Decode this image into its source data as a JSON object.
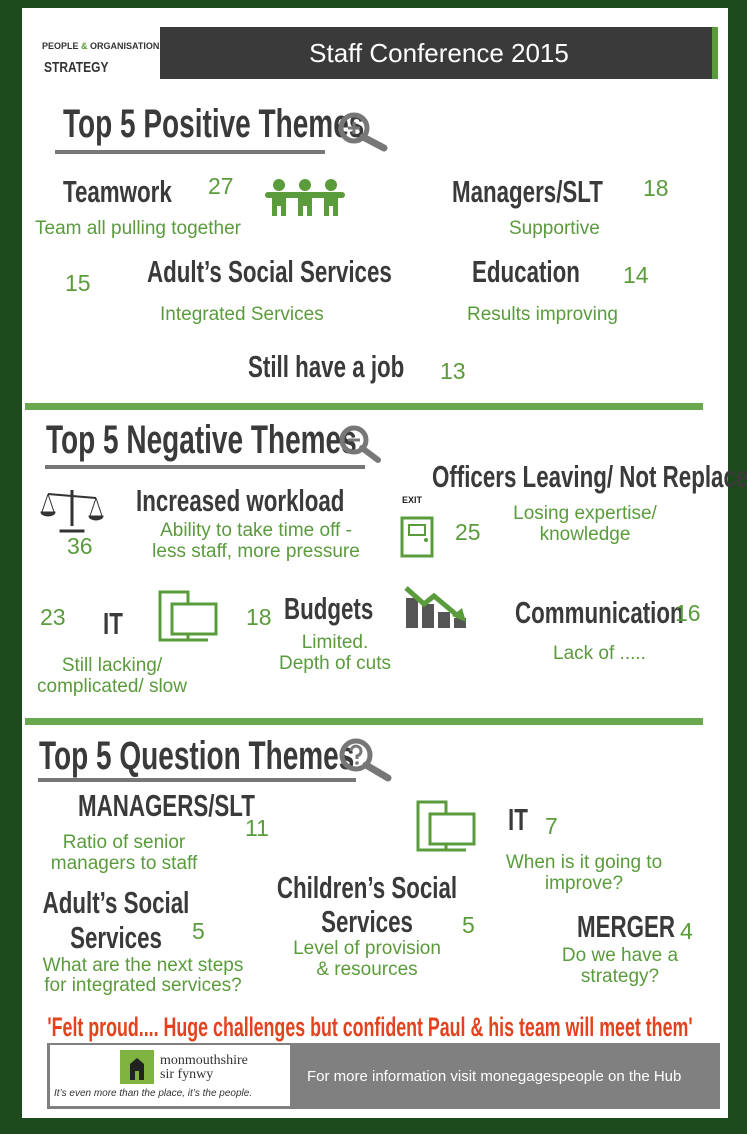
{
  "header": {
    "org_line1_a": "PEOPLE",
    "org_amp": "&",
    "org_line1_b": "ORGANISATIONAL",
    "org_line2": "STRATEGY",
    "title": "Staff Conference 2015"
  },
  "sections": [
    {
      "title": "Top 5 Positive Themes",
      "items": [
        {
          "theme": [
            "Teamwork"
          ],
          "count": 27,
          "detail": [
            "Team all pulling together"
          ]
        },
        {
          "theme": [
            "Managers/SLT"
          ],
          "count": 18,
          "detail": [
            "Supportive"
          ]
        },
        {
          "theme": [
            "Adult’s Social Services"
          ],
          "count": 15,
          "detail": [
            "Integrated Services"
          ]
        },
        {
          "theme": [
            "Education"
          ],
          "count": 14,
          "detail": [
            "Results improving"
          ]
        },
        {
          "theme": [
            "Still have a job"
          ],
          "count": 13
        }
      ]
    },
    {
      "title": "Top 5 Negative Themes",
      "items": [
        {
          "theme": [
            "Increased workload"
          ],
          "count": 36,
          "detail": [
            "Ability to take time off -",
            "less staff, more pressure"
          ]
        },
        {
          "theme": [
            "Officers Leaving/ Not Replaced"
          ],
          "count": 25,
          "detail": [
            "Losing expertise/",
            "knowledge"
          ]
        },
        {
          "theme": [
            "IT"
          ],
          "count": 23,
          "detail": [
            "Still lacking/",
            "complicated/ slow"
          ]
        },
        {
          "theme": [
            "Budgets"
          ],
          "count": 18,
          "detail": [
            "Limited.",
            "Depth of cuts"
          ]
        },
        {
          "theme": [
            "Communication"
          ],
          "count": 16,
          "detail": [
            "Lack of ....."
          ]
        }
      ]
    },
    {
      "title": "Top 5 Question Themes",
      "items": [
        {
          "theme": [
            "MANAGERS/SLT"
          ],
          "count": 11,
          "detail": [
            "Ratio of senior",
            "managers to staff"
          ]
        },
        {
          "theme": [
            "IT"
          ],
          "count": 7,
          "detail": [
            "When is it going to",
            "improve?"
          ]
        },
        {
          "theme": [
            "Adult’s Social",
            "Services"
          ],
          "count": 5,
          "detail": [
            "What are the next steps",
            "for integrated services?"
          ]
        },
        {
          "theme": [
            "Children’s Social",
            "Services"
          ],
          "count": 5,
          "detail": [
            "Level of provision",
            "& resources"
          ]
        },
        {
          "theme": [
            "MERGER"
          ],
          "count": 4,
          "detail": [
            "Do we have a",
            "strategy?"
          ]
        }
      ]
    }
  ],
  "icon_labels": {
    "exit": "EXIT"
  },
  "quote": "'Felt proud.... Huge challenges but confident Paul & his team will meet them'",
  "footer": {
    "brand_line1": "monmouthshire",
    "brand_line2": "sir fynwy",
    "tagline": "It’s even more than the place, it’s the people.",
    "info": "For more information visit monegagespeople on the Hub"
  }
}
